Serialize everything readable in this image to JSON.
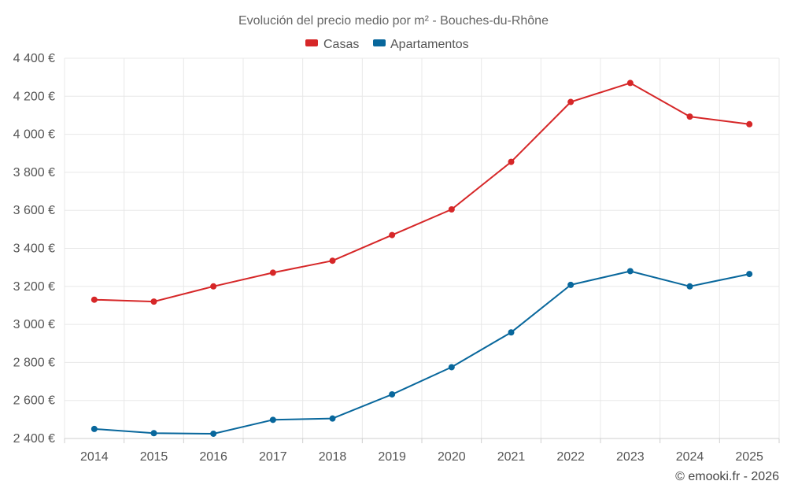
{
  "chart_data": {
    "type": "line",
    "title": "Evolución del precio medio por m² - Bouches-du-Rhône",
    "xlabel": "",
    "ylabel": "",
    "categories": [
      "2014",
      "2015",
      "2016",
      "2017",
      "2018",
      "2019",
      "2020",
      "2021",
      "2022",
      "2023",
      "2024",
      "2025"
    ],
    "ylim": [
      2400,
      4400
    ],
    "yticks": [
      2400,
      2600,
      2800,
      3000,
      3200,
      3400,
      3600,
      3800,
      4000,
      4200,
      4400
    ],
    "ytick_labels": [
      "2 400 €",
      "2 600 €",
      "2 800 €",
      "3 000 €",
      "3 200 €",
      "3 400 €",
      "3 600 €",
      "3 800 €",
      "4 000 €",
      "4 200 €",
      "4 400 €"
    ],
    "grid": true,
    "legend_position": "top-center",
    "series": [
      {
        "name": "Casas",
        "color": "#d62728",
        "values": [
          3130,
          3120,
          3200,
          3272,
          3335,
          3470,
          3605,
          3855,
          4170,
          4270,
          4093,
          4053
        ]
      },
      {
        "name": "Apartamentos",
        "color": "#08679c",
        "values": [
          2450,
          2428,
          2425,
          2498,
          2505,
          2632,
          2775,
          2958,
          3208,
          3280,
          3200,
          3265
        ]
      }
    ],
    "credit": "© emooki.fr - 2026"
  }
}
